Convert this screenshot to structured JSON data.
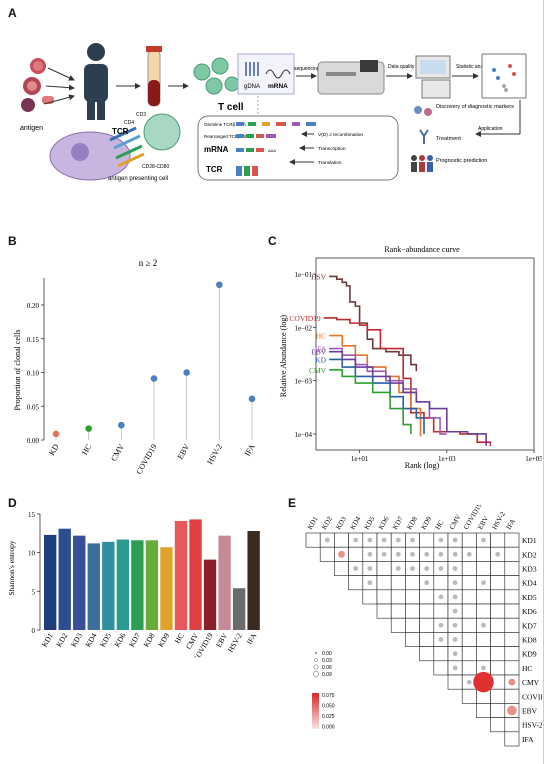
{
  "panels": {
    "a": "A",
    "b": "B",
    "c": "C",
    "d": "D",
    "e": "E"
  },
  "schematic": {
    "antigen": "antigen",
    "tcell": "T cell",
    "gdna": "gDNA",
    "mrna": "mRNA",
    "sequencing": "sequencing",
    "dqc": "Data quality control",
    "stat": "Statistic analysis",
    "cd3": "CD3",
    "cd4": "CD4",
    "tcr": "TCR",
    "cd28": "CD28-CD80",
    "apc": "antigen presenting cell",
    "germline": "Germline TCRβ DNA",
    "rearranged": "Rearranged TCRβ DNA",
    "vdj": "V(D) J recombination",
    "transcription": "Transcription",
    "translation": "Translation",
    "box_mrna": "mRNA",
    "box_tcr": "TCR",
    "discovery": "Discovery of diagnostic markers",
    "treatment": "Treatment",
    "application": "Application",
    "prognostic": "Prognostic prediction"
  },
  "chart_data": [
    {
      "type": "scatter",
      "panel": "B",
      "title": "n ≥ 2",
      "xlabel": "",
      "ylabel": "Proportion of clonal cells",
      "categories": [
        "KD",
        "HC",
        "CMV",
        "COVID19",
        "EBV",
        "HSV-2",
        "IFA"
      ],
      "values": [
        0.009,
        0.017,
        0.022,
        0.091,
        0.1,
        0.23,
        0.061
      ],
      "colors": [
        "#e8735a",
        "#2ca02c",
        "#4a7fc1",
        "#4a7fc1",
        "#4a7fc1",
        "#4a7fc1",
        "#4a7fc1"
      ],
      "yticks": [
        "0.00",
        "0.05",
        "0.10",
        "0.15",
        "0.20"
      ],
      "ylim": [
        0,
        0.24
      ]
    },
    {
      "type": "line",
      "panel": "C",
      "title": "Rank−abundance curve",
      "xlabel": "Rank (log)",
      "ylabel": "Relative Abundance (log)",
      "log_scale": true,
      "xticks": [
        "1e+01",
        "1e+03",
        "1e+05"
      ],
      "yticks": [
        "1e−01",
        "1e−02",
        "1e−03",
        "1e−04"
      ],
      "xlim": [
        1,
        100000
      ],
      "ylim": [
        5e-05,
        0.2
      ],
      "series": [
        {
          "name": "HSV",
          "color": "#6b3b3b",
          "points": [
            [
              2,
              0.09
            ],
            [
              3,
              0.08
            ],
            [
              4,
              0.07
            ],
            [
              5,
              0.06
            ],
            [
              6,
              0.03
            ],
            [
              8,
              0.025
            ],
            [
              10,
              0.012
            ],
            [
              15,
              0.006
            ],
            [
              20,
              0.004
            ],
            [
              40,
              0.0035
            ],
            [
              80,
              0.003
            ],
            [
              150,
              0.002
            ],
            [
              200,
              0.0015
            ]
          ]
        },
        {
          "name": "COVID19",
          "color": "#c0282d",
          "points": [
            [
              1.5,
              0.015
            ],
            [
              3,
              0.014
            ],
            [
              6,
              0.012
            ],
            [
              10,
              0.011
            ],
            [
              15,
              0.009
            ],
            [
              30,
              0.004
            ],
            [
              60,
              0.004
            ],
            [
              100,
              0.0011
            ],
            [
              150,
              0.00025
            ],
            [
              300,
              0.0002
            ],
            [
              500,
              0.00011
            ],
            [
              1000,
              0.00011
            ],
            [
              2000,
              0.0001
            ],
            [
              5000,
              7e-05
            ],
            [
              10000,
              6e-05
            ]
          ]
        },
        {
          "name": "HC",
          "color": "#e0762a",
          "points": [
            [
              2,
              0.007
            ],
            [
              4,
              0.0045
            ],
            [
              8,
              0.003
            ],
            [
              15,
              0.0018
            ],
            [
              40,
              0.0012
            ],
            [
              80,
              0.0006
            ],
            [
              150,
              0.0003
            ],
            [
              250,
              9e-05
            ]
          ]
        },
        {
          "name": "IFA",
          "color": "#9b59b6",
          "points": [
            [
              2,
              0.004
            ],
            [
              4,
              0.003
            ],
            [
              8,
              0.002
            ],
            [
              15,
              0.0015
            ],
            [
              40,
              0.001
            ],
            [
              100,
              0.0007
            ],
            [
              200,
              0.0004
            ],
            [
              400,
              0.0002
            ],
            [
              700,
              0.0001
            ],
            [
              1000,
              0.0001
            ]
          ]
        },
        {
          "name": "EBV",
          "color": "#6a3d9a",
          "points": [
            [
              2,
              0.0035
            ],
            [
              4,
              0.0025
            ],
            [
              8,
              0.0018
            ],
            [
              20,
              0.0012
            ],
            [
              50,
              0.0009
            ],
            [
              100,
              0.0006
            ],
            [
              200,
              0.0004
            ],
            [
              400,
              0.0003
            ],
            [
              1000,
              0.00011
            ],
            [
              3000,
              0.0001
            ],
            [
              8000,
              6e-05
            ]
          ]
        },
        {
          "name": "KD",
          "color": "#2a5fa8",
          "points": [
            [
              2,
              0.0025
            ],
            [
              4,
              0.0018
            ],
            [
              8,
              0.0012
            ],
            [
              20,
              0.0009
            ],
            [
              50,
              0.0005
            ],
            [
              100,
              0.0003
            ],
            [
              200,
              0.0002
            ],
            [
              300,
              0.0001
            ]
          ]
        },
        {
          "name": "CMV",
          "color": "#2ca02c",
          "points": [
            [
              2,
              0.0016
            ],
            [
              4,
              0.0012
            ],
            [
              8,
              0.0009
            ],
            [
              20,
              0.0006
            ],
            [
              50,
              0.0003
            ],
            [
              100,
              0.00015
            ],
            [
              150,
              0.0001
            ]
          ]
        }
      ]
    },
    {
      "type": "bar",
      "panel": "D",
      "xlabel": "",
      "ylabel": "Shannon's entropy",
      "categories": [
        "KD1",
        "KD2",
        "KD3",
        "KD4",
        "KD5",
        "KD6",
        "KD7",
        "KD8",
        "KD9",
        "HC",
        "CMV",
        "COVID19",
        "EBV",
        "HSV-2",
        "IFA"
      ],
      "values": [
        12.3,
        13.1,
        12.2,
        11.2,
        11.4,
        11.7,
        11.6,
        11.6,
        10.7,
        14.1,
        14.3,
        9.1,
        12.2,
        5.4,
        12.8
      ],
      "colors": [
        "#1f3f7a",
        "#2e4f8f",
        "#3a4d9a",
        "#3d6ea0",
        "#2f8fa0",
        "#2a9b8f",
        "#2e9e55",
        "#6aac3c",
        "#e0a22a",
        "#e8585a",
        "#e04040",
        "#8b1f2b",
        "#c48a98",
        "#6b6b6b",
        "#3b2a20"
      ],
      "yticks": [
        "0",
        "5",
        "10",
        "15"
      ],
      "ylim": [
        0,
        15
      ]
    },
    {
      "type": "heatmap",
      "panel": "E",
      "labels": [
        "KD1",
        "KD2",
        "KD3",
        "KD4",
        "KD5",
        "KD6",
        "KD7",
        "KD8",
        "KD9",
        "HC",
        "CMV",
        "COVID19",
        "EBV",
        "HSV-2",
        "IFA"
      ],
      "legend_size_values": [
        "0.00",
        "0.03",
        "0.06",
        "0.09"
      ],
      "legend_color_values": [
        "0.075",
        "0.050",
        "0.025",
        "0.000"
      ],
      "cells": [
        [
          0,
          1,
          0.005
        ],
        [
          0,
          3,
          0.005
        ],
        [
          0,
          4,
          0.005
        ],
        [
          0,
          5,
          0.005
        ],
        [
          0,
          6,
          0.005
        ],
        [
          0,
          7,
          0.005
        ],
        [
          0,
          9,
          0.005
        ],
        [
          0,
          10,
          0.005
        ],
        [
          0,
          12,
          0.005
        ],
        [
          1,
          2,
          0.01
        ],
        [
          1,
          4,
          0.005
        ],
        [
          1,
          5,
          0.005
        ],
        [
          1,
          6,
          0.005
        ],
        [
          1,
          7,
          0.005
        ],
        [
          1,
          8,
          0.005
        ],
        [
          1,
          9,
          0.005
        ],
        [
          1,
          10,
          0.005
        ],
        [
          1,
          11,
          0.005
        ],
        [
          1,
          13,
          0.005
        ],
        [
          2,
          3,
          0.005
        ],
        [
          2,
          4,
          0.005
        ],
        [
          2,
          6,
          0.005
        ],
        [
          2,
          7,
          0.005
        ],
        [
          2,
          8,
          0.005
        ],
        [
          2,
          9,
          0.005
        ],
        [
          2,
          10,
          0.005
        ],
        [
          3,
          4,
          0.005
        ],
        [
          3,
          8,
          0.005
        ],
        [
          3,
          10,
          0.005
        ],
        [
          3,
          12,
          0.005
        ],
        [
          4,
          9,
          0.005
        ],
        [
          4,
          10,
          0.005
        ],
        [
          5,
          10,
          0.005
        ],
        [
          6,
          9,
          0.005
        ],
        [
          6,
          10,
          0.005
        ],
        [
          6,
          12,
          0.005
        ],
        [
          7,
          9,
          0.005
        ],
        [
          7,
          10,
          0.005
        ],
        [
          8,
          10,
          0.005
        ],
        [
          9,
          10,
          0.005
        ],
        [
          9,
          12,
          0.005
        ],
        [
          10,
          11,
          0.005
        ],
        [
          10,
          12,
          0.09
        ],
        [
          10,
          14,
          0.01
        ],
        [
          12,
          14,
          0.02
        ]
      ]
    }
  ]
}
